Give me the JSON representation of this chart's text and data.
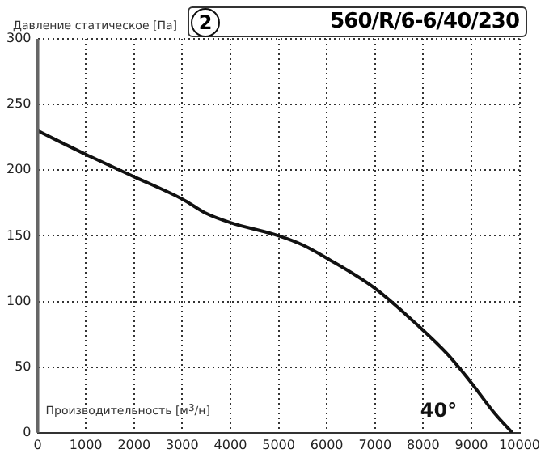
{
  "chart_data": {
    "type": "line",
    "title": "560/R/6-6/40/230",
    "ylabel": "Давление статическое [Па]",
    "xlabel": "Производительность [м$^{3}$/н]",
    "annotations": [
      "2",
      "40°"
    ],
    "x": [
      0,
      1000,
      2000,
      3000,
      3500,
      4000,
      5000,
      5500,
      6000,
      7000,
      8000,
      8500,
      9000,
      9500,
      9850
    ],
    "series": [
      {
        "color": "#111111",
        "values": [
          230,
          212,
          195,
          178,
          167,
          160,
          150,
          143,
          133,
          110,
          78,
          60,
          38,
          14,
          0
        ]
      }
    ],
    "xlim": [
      0,
      10000
    ],
    "xticks": [
      0,
      1000,
      2000,
      3000,
      4000,
      5000,
      6000,
      7000,
      8000,
      9000,
      10000
    ],
    "ylim": [
      0,
      300
    ],
    "yticks": [
      0,
      50,
      100,
      150,
      200,
      250,
      300
    ],
    "grid": true,
    "legend": false
  }
}
